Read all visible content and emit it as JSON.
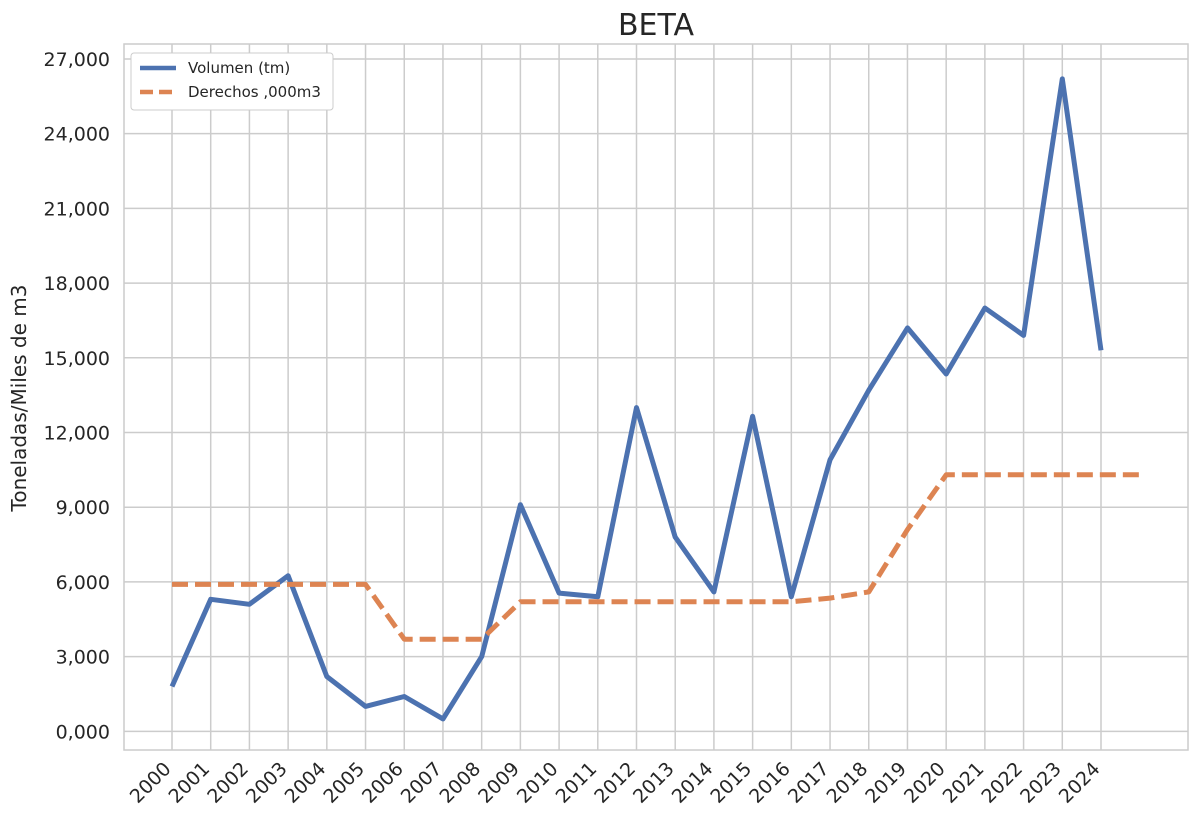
{
  "chart_data": {
    "type": "line",
    "title": "BETA",
    "xlabel": "",
    "ylabel": "Toneladas/Miles de m3",
    "x": [
      "2000",
      "2001",
      "2002",
      "2003",
      "2004",
      "2005",
      "2006",
      "2007",
      "2008",
      "2009",
      "2010",
      "2011",
      "2012",
      "2013",
      "2014",
      "2015",
      "2016",
      "2017",
      "2018",
      "2019",
      "2020",
      "2021",
      "2022",
      "2023",
      "2024",
      "2025"
    ],
    "ylim": [
      -750,
      27600
    ],
    "yticks": [
      0,
      3000,
      6000,
      9000,
      12000,
      15000,
      18000,
      21000,
      24000,
      27000
    ],
    "ytick_labels": [
      "0,000",
      "3,000",
      "6,000",
      "9,000",
      "12,000",
      "15,000",
      "18,000",
      "21,000",
      "24,000",
      "27,000"
    ],
    "xtick_labels": [
      "2000",
      "2001",
      "2002",
      "2003",
      "2004",
      "2005",
      "2006",
      "2007",
      "2008",
      "2009",
      "2010",
      "2011",
      "2012",
      "2013",
      "2014",
      "2015",
      "2016",
      "2017",
      "2018",
      "2019",
      "2020",
      "2021",
      "2022",
      "2023",
      "2024"
    ],
    "grid": true,
    "legend_position": "top-left",
    "series": [
      {
        "name": "Volumen (tm)",
        "color": "#4c72b0",
        "style": "solid",
        "values": [
          1800,
          5300,
          5100,
          6250,
          2200,
          1000,
          1400,
          500,
          3000,
          9100,
          5550,
          5400,
          13000,
          7800,
          5600,
          12650,
          5400,
          10900,
          13700,
          16200,
          14350,
          17000,
          15900,
          26200,
          15300,
          null
        ]
      },
      {
        "name": "Derechos ,000m3",
        "color": "#dd8452",
        "style": "dashed",
        "values": [
          5900,
          5900,
          5900,
          5900,
          5900,
          5900,
          3700,
          3700,
          3700,
          5200,
          5200,
          5200,
          5200,
          5200,
          5200,
          5200,
          5200,
          5350,
          5600,
          8100,
          10300,
          10300,
          10300,
          10300,
          10300,
          10300
        ]
      }
    ]
  }
}
